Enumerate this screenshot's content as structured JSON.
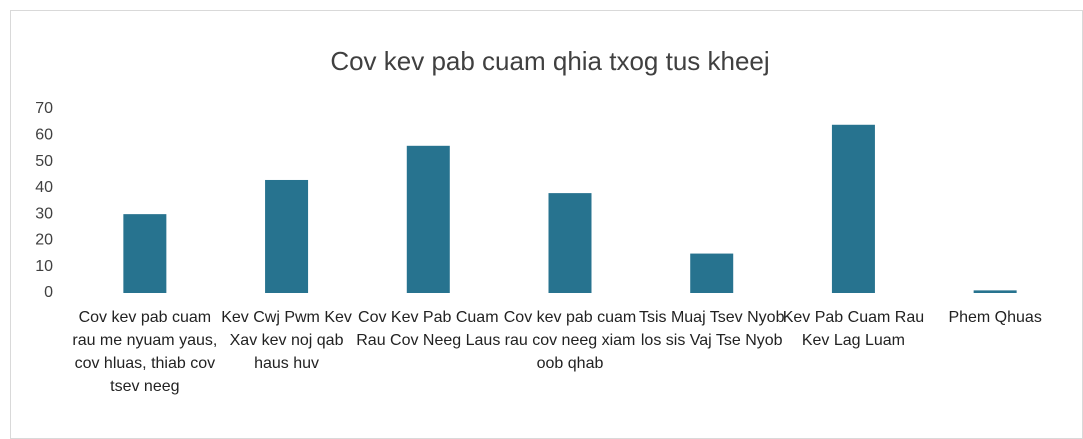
{
  "chart_data": {
    "type": "bar",
    "title": "Cov kev pab cuam qhia txog tus kheej",
    "categories": [
      "Cov kev pab cuam rau me nyuam yaus, cov hluas, thiab cov tsev neeg",
      "Kev Cwj Pwm Kev Xav kev noj qab haus huv",
      "Cov Kev Pab Cuam Rau Cov Neeg Laus",
      "Cov kev pab cuam rau cov neeg xiam oob qhab",
      "Tsis Muaj Tsev Nyob los sis Vaj Tse Nyob",
      "Kev Pab Cuam Rau Kev Lag Luam",
      "Phem Qhuas"
    ],
    "values": [
      30,
      43,
      56,
      38,
      15,
      64,
      1
    ],
    "color": "#27738f",
    "ylim": [
      0,
      70
    ],
    "yticks": [
      0,
      10,
      20,
      30,
      40,
      50,
      60,
      70
    ],
    "grid": false
  }
}
